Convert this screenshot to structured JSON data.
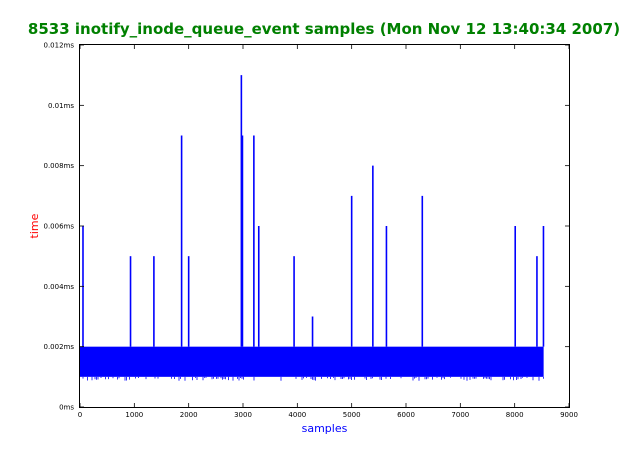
{
  "chart_data": {
    "type": "line",
    "title": "8533 inotify_inode_queue_event samples (Mon Nov 12 13:40:34 2007)",
    "xlabel": "samples",
    "ylabel": "time",
    "xlim": [
      0,
      9000
    ],
    "ylim": [
      0,
      0.012
    ],
    "x_ticks": [
      0,
      1000,
      2000,
      3000,
      4000,
      5000,
      6000,
      7000,
      8000,
      9000
    ],
    "x_tick_labels": [
      "0",
      "1000",
      "2000",
      "3000",
      "4000",
      "5000",
      "6000",
      "7000",
      "8000",
      "9000"
    ],
    "y_ticks": [
      0,
      0.002,
      0.004,
      0.006,
      0.008,
      0.01,
      0.012
    ],
    "y_tick_labels": [
      "0ms",
      "0.002ms",
      "0.004ms",
      "0.006ms",
      "0.008ms",
      "0.01ms",
      "0.012ms"
    ],
    "grid": false,
    "series": [
      {
        "color": "#0000ff",
        "baseline_band": {
          "x_start": 0,
          "x_end": 8533,
          "y_low": 0.001,
          "y_high": 0.002
        },
        "spikes": [
          {
            "x": 55,
            "y": 0.006
          },
          {
            "x": 930,
            "y": 0.005
          },
          {
            "x": 1360,
            "y": 0.005
          },
          {
            "x": 1870,
            "y": 0.009
          },
          {
            "x": 2000,
            "y": 0.005
          },
          {
            "x": 2970,
            "y": 0.011
          },
          {
            "x": 2990,
            "y": 0.009
          },
          {
            "x": 3200,
            "y": 0.009
          },
          {
            "x": 3290,
            "y": 0.006
          },
          {
            "x": 3940,
            "y": 0.005
          },
          {
            "x": 4280,
            "y": 0.003
          },
          {
            "x": 5000,
            "y": 0.007
          },
          {
            "x": 5390,
            "y": 0.008
          },
          {
            "x": 5640,
            "y": 0.006
          },
          {
            "x": 6300,
            "y": 0.007
          },
          {
            "x": 8010,
            "y": 0.006
          },
          {
            "x": 8410,
            "y": 0.005
          },
          {
            "x": 8530,
            "y": 0.006
          }
        ]
      }
    ],
    "colors": {
      "title": "#008000",
      "xlabel": "#0000ff",
      "ylabel": "#ff0000",
      "line": "#0000ff",
      "axes": "#000000"
    }
  }
}
